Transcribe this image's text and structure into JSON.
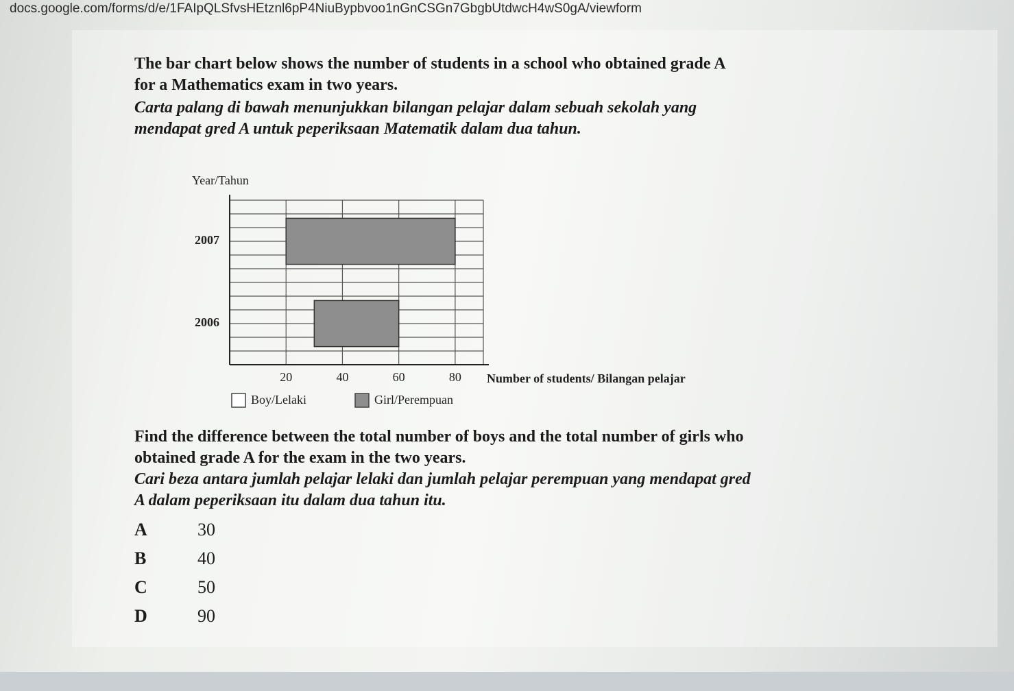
{
  "url": "docs.google.com/forms/d/e/1FAIpQLSfvsHEtznl6pP4NiuBypbvoo1nGnCSGn7GbgbUtdwcH4wS0gA/viewform",
  "intro": {
    "english": "The bar chart below shows the number of students in a school who obtained grade A for a Mathematics exam in two years.",
    "malay": "Carta palang di bawah menunjukkan bilangan pelajar dalam sebuah sekolah yang mendapat gred A untuk peperiksaan Matematik dalam dua tahun."
  },
  "chart_data": {
    "type": "stacked-bar-horizontal",
    "y_label": "Year/Tahun",
    "x_label": "Number of students/ Bilangan pelajar",
    "categories": [
      "2006",
      "2007"
    ],
    "series": [
      {
        "name": "Boy/Lelaki",
        "color": "#ffffff",
        "values": [
          30,
          20
        ]
      },
      {
        "name": "Girl/Perempuan",
        "color": "#8e8e8e",
        "values": [
          30,
          60
        ]
      }
    ],
    "xlim": [
      0,
      90
    ],
    "xticks": [
      20,
      40,
      60,
      80
    ],
    "grid": true,
    "legend": "bottom"
  },
  "question": {
    "english": "Find the difference between the total number of boys and the total number of girls who obtained grade A for the exam in the two years.",
    "malay": "Cari beza antara jumlah pelajar lelaki dan jumlah pelajar perempuan yang mendapat gred A dalam peperiksaan itu dalam dua tahun itu."
  },
  "options": [
    {
      "letter": "A",
      "text": "30"
    },
    {
      "letter": "B",
      "text": "40"
    },
    {
      "letter": "C",
      "text": "50"
    },
    {
      "letter": "D",
      "text": "90"
    }
  ]
}
